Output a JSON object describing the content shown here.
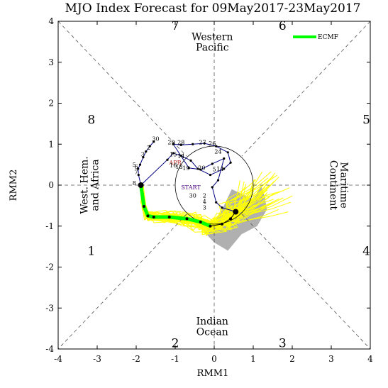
{
  "chart_data": {
    "type": "line",
    "title": "MJO Index Forecast for 09May2017-23May2017",
    "xlabel": "RMM1",
    "ylabel": "RMM2",
    "xlim": [
      -4,
      4
    ],
    "ylim": [
      -4,
      4
    ],
    "x_ticks": [
      "-4",
      "-3",
      "-2",
      "-1",
      "0",
      "1",
      "2",
      "3",
      "4"
    ],
    "y_ticks": [
      "-4",
      "-3",
      "-2",
      "-1",
      "0",
      "1",
      "2",
      "3",
      "4"
    ],
    "grid": false,
    "phases": [
      {
        "label": "1",
        "x": -3.15,
        "y": -1.6
      },
      {
        "label": "2",
        "x": -1.0,
        "y": -3.85
      },
      {
        "label": "3",
        "x": 1.75,
        "y": -3.85
      },
      {
        "label": "4",
        "x": 3.9,
        "y": -1.6
      },
      {
        "label": "5",
        "x": 3.9,
        "y": 1.6
      },
      {
        "label": "6",
        "x": 1.75,
        "y": 3.9
      },
      {
        "label": "7",
        "x": -1.0,
        "y": 3.9
      },
      {
        "label": "8",
        "x": -3.15,
        "y": 1.6
      }
    ],
    "regions": [
      {
        "text": [
          "Western",
          "Pacific"
        ],
        "x": -0.05,
        "y": 3.5,
        "rotate": 0
      },
      {
        "text": [
          "Indian",
          "Ocean"
        ],
        "x": -0.05,
        "y": -3.45,
        "rotate": 0
      },
      {
        "text": [
          "West. Hem.",
          "and Africa"
        ],
        "x": -3.2,
        "y": 0.0,
        "rotate": -90
      },
      {
        "text": [
          "Maritime",
          "Continent"
        ],
        "x": 3.2,
        "y": 0.0,
        "rotate": 90
      }
    ],
    "legend": {
      "position": "top-right",
      "entries": [
        {
          "name": "ECMF",
          "color": "#00ff00"
        }
      ]
    },
    "series": [
      {
        "name": "observed",
        "color": "#000080",
        "points": [
          [
            -1.55,
            1.06
          ],
          [
            -1.65,
            0.95
          ],
          [
            -1.75,
            0.82
          ],
          [
            -1.82,
            0.68
          ],
          [
            -1.9,
            0.5
          ],
          [
            -1.95,
            0.4
          ],
          [
            -1.94,
            0.25
          ],
          [
            -1.88,
            0.0
          ],
          [
            -1.2,
            0.62
          ],
          [
            -1.05,
            0.78
          ],
          [
            -0.85,
            0.72
          ],
          [
            -0.6,
            0.6
          ],
          [
            -0.42,
            0.4
          ],
          [
            -0.1,
            0.25
          ],
          [
            0.25,
            0.4
          ],
          [
            0.42,
            0.55
          ],
          [
            0.35,
            0.8
          ],
          [
            0.05,
            0.95
          ],
          [
            -0.25,
            1.02
          ],
          [
            -0.55,
            1.0
          ],
          [
            -0.85,
            0.98
          ],
          [
            -1.05,
            1.0
          ],
          [
            -0.65,
            0.42
          ],
          [
            -0.35,
            0.38
          ],
          [
            -0.05,
            0.52
          ],
          [
            0.25,
            0.65
          ],
          [
            0.1,
            0.12
          ],
          [
            -0.05,
            -0.05
          ],
          [
            0.05,
            -0.42
          ],
          [
            0.2,
            -0.55
          ],
          [
            0.55,
            -0.65
          ]
        ]
      },
      {
        "name": "ensemble-mean",
        "color": "#000000",
        "points": [
          [
            -1.88,
            0.0
          ],
          [
            -1.8,
            -0.52
          ],
          [
            -1.7,
            -0.75
          ],
          [
            -1.55,
            -0.78
          ],
          [
            -1.15,
            -0.78
          ],
          [
            -0.7,
            -0.82
          ],
          [
            -0.35,
            -0.9
          ],
          [
            -0.1,
            -1.0
          ],
          [
            0.2,
            -0.95
          ],
          [
            0.42,
            -0.82
          ],
          [
            0.55,
            -0.65
          ]
        ]
      },
      {
        "name": "ECMF",
        "color": "#00ff00",
        "points": [
          [
            -1.88,
            0.0
          ],
          [
            -1.8,
            -0.52
          ],
          [
            -1.7,
            -0.75
          ],
          [
            -1.55,
            -0.78
          ],
          [
            -1.15,
            -0.78
          ],
          [
            -0.7,
            -0.82
          ],
          [
            -0.35,
            -0.9
          ],
          [
            -0.1,
            -1.0
          ]
        ]
      }
    ],
    "day_labels": [
      {
        "text": "30",
        "x": -1.5,
        "y": 1.08,
        "color": "#000000"
      },
      {
        "text": "2",
        "x": -1.68,
        "y": 0.87,
        "color": "#000000"
      },
      {
        "text": "3",
        "x": -1.83,
        "y": 0.7,
        "color": "#000000"
      },
      {
        "text": "5",
        "x": -2.05,
        "y": 0.45,
        "color": "#000000"
      },
      {
        "text": "6",
        "x": -2.0,
        "y": 0.4,
        "color": "#000000"
      },
      {
        "text": "7",
        "x": -2.0,
        "y": 0.27,
        "color": "#000000"
      },
      {
        "text": "8",
        "x": -2.05,
        "y": 0.0,
        "color": "#000000"
      },
      {
        "text": "29",
        "x": -1.1,
        "y": 1.0,
        "color": "#000000"
      },
      {
        "text": "28",
        "x": -0.85,
        "y": 1.0,
        "color": "#000000"
      },
      {
        "text": "27",
        "x": -0.3,
        "y": 1.0,
        "color": "#000000"
      },
      {
        "text": "26",
        "x": -0.05,
        "y": 0.97,
        "color": "#000000"
      },
      {
        "text": "24",
        "x": 0.1,
        "y": 0.77,
        "color": "#000000"
      },
      {
        "text": "15",
        "x": -1.05,
        "y": 0.7,
        "color": "#000000"
      },
      {
        "text": "14",
        "x": -0.85,
        "y": 0.66,
        "color": "#000000"
      },
      {
        "text": "APR",
        "x": -1.0,
        "y": 0.5,
        "color": "#b22222"
      },
      {
        "text": "16",
        "x": -1.05,
        "y": 0.43,
        "color": "#000000"
      },
      {
        "text": "18",
        "x": -0.9,
        "y": 0.4,
        "color": "#000000"
      },
      {
        "text": "19",
        "x": -0.72,
        "y": 0.36,
        "color": "#000000"
      },
      {
        "text": "20",
        "x": -0.32,
        "y": 0.37,
        "color": "#000000"
      },
      {
        "text": "5",
        "x": 0.0,
        "y": 0.34,
        "color": "#000000"
      },
      {
        "text": "14",
        "x": 0.15,
        "y": 0.35,
        "color": "#000000"
      },
      {
        "text": "START",
        "x": -0.6,
        "y": -0.1,
        "color": "#4b0082"
      },
      {
        "text": "2",
        "x": -0.25,
        "y": -0.3,
        "color": "#000000"
      },
      {
        "text": "30",
        "x": -0.55,
        "y": -0.3,
        "color": "#000000"
      },
      {
        "text": "4",
        "x": -0.25,
        "y": -0.45,
        "color": "#000000"
      },
      {
        "text": "3",
        "x": -0.25,
        "y": -0.6,
        "color": "#000000"
      }
    ],
    "ensemble": {
      "color": "#ffff00",
      "count": 50
    },
    "spread_region": {
      "color": "#b0b0b0"
    }
  }
}
